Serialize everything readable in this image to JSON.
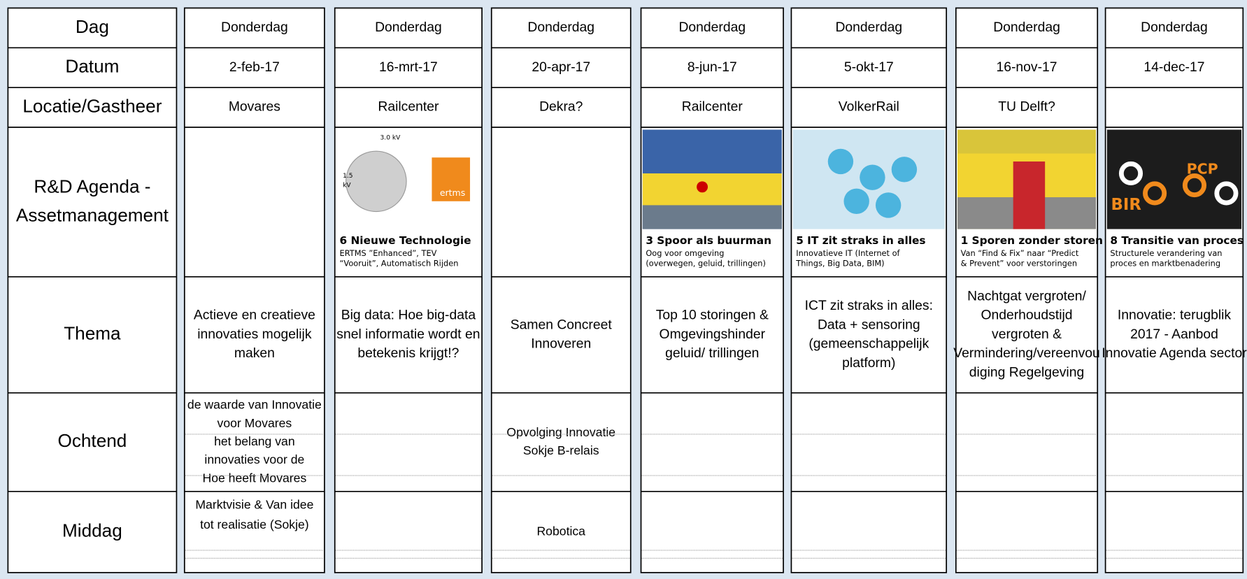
{
  "rows": [
    "Dag",
    "Datum",
    "Locatie/Gastheer",
    [
      "R&D  Agenda -",
      "Assetmanagement"
    ],
    "Thema",
    "Ochtend",
    "Middag"
  ],
  "columns": [
    {
      "day": "Donderdag",
      "date": "2-feb-17",
      "location": "Movares",
      "card": null,
      "theme": [
        "Actieve en creatieve",
        "innovaties mogelijk",
        "maken"
      ],
      "morning": [
        "de waarde van Innovatie",
        "voor Movares",
        "het belang van",
        "innovaties voor de",
        "Hoe heeft Movares"
      ],
      "afternoon": [
        "Marktvisie & Van idee",
        "tot realisatie (Sokje)"
      ]
    },
    {
      "day": "Donderdag",
      "date": "16-mrt-17",
      "location": "Railcenter",
      "card": {
        "number": "6",
        "title": "Nieuwe Technologie",
        "subtitle": [
          "ERTMS ”Enhanced”, TEV",
          "“Vooruit”, Automatisch Rijden"
        ],
        "image_labels": [
          "3.0 kV",
          "1.5",
          "kV",
          "ertms"
        ]
      },
      "theme": [
        "Big data:  Hoe big-data",
        "snel informatie wordt en",
        "betekenis krijgt!?"
      ],
      "morning": [],
      "afternoon": []
    },
    {
      "day": "Donderdag",
      "date": "20-apr-17",
      "location": "Dekra?",
      "card": null,
      "theme": [
        "Samen Concreet",
        "Innoveren"
      ],
      "morning": [
        "Opvolging Innovatie",
        "Sokje B-relais"
      ],
      "afternoon": [
        "Robotica"
      ]
    },
    {
      "day": "Donderdag",
      "date": "8-jun-17",
      "location": "Railcenter",
      "card": {
        "number": "3",
        "title": "Spoor als buurman",
        "subtitle": [
          "Oog voor omgeving",
          "(overwegen, geluid, trillingen)"
        ],
        "image_labels": []
      },
      "theme": [
        "Top 10 storingen &",
        "Omgevingshinder",
        "geluid/ trillingen"
      ],
      "morning": [],
      "afternoon": []
    },
    {
      "day": "Donderdag",
      "date": "5-okt-17",
      "location": "VolkerRail",
      "card": {
        "number": "5",
        "title": "IT zit straks in alles",
        "subtitle": [
          "Innovatieve IT (Internet of",
          "Things, Big Data, BIM)"
        ],
        "image_labels": []
      },
      "theme": [
        "ICT zit straks in alles:",
        "Data + sensoring",
        "(gemeenschappelijk",
        "platform)"
      ],
      "morning": [],
      "afternoon": []
    },
    {
      "day": "Donderdag",
      "date": "16-nov-17",
      "location": "TU Delft?",
      "card": {
        "number": "1",
        "title": "Sporen zonder storen",
        "subtitle": [
          "Van “Find & Fix” naar “Predict",
          "& Prevent” voor verstoringen"
        ],
        "image_labels": []
      },
      "theme": [
        "Nachtgat vergroten/",
        "Onderhoudstijd",
        "vergroten &",
        "Vermindering/vereenvou",
        "diging Regelgeving"
      ],
      "morning": [],
      "afternoon": []
    },
    {
      "day": "Donderdag",
      "date": "14-dec-17",
      "location": null,
      "card": {
        "number": "8",
        "title": "Transitie van proces",
        "subtitle": [
          "Structurele verandering van",
          "proces en marktbenadering"
        ],
        "image_labels": [
          "BIR",
          "PCP"
        ]
      },
      "theme": [
        "Innovatie:  terugblik",
        "2017 -  Aanbod",
        "Innovatie Agenda sector"
      ],
      "morning": [],
      "afternoon": []
    }
  ]
}
